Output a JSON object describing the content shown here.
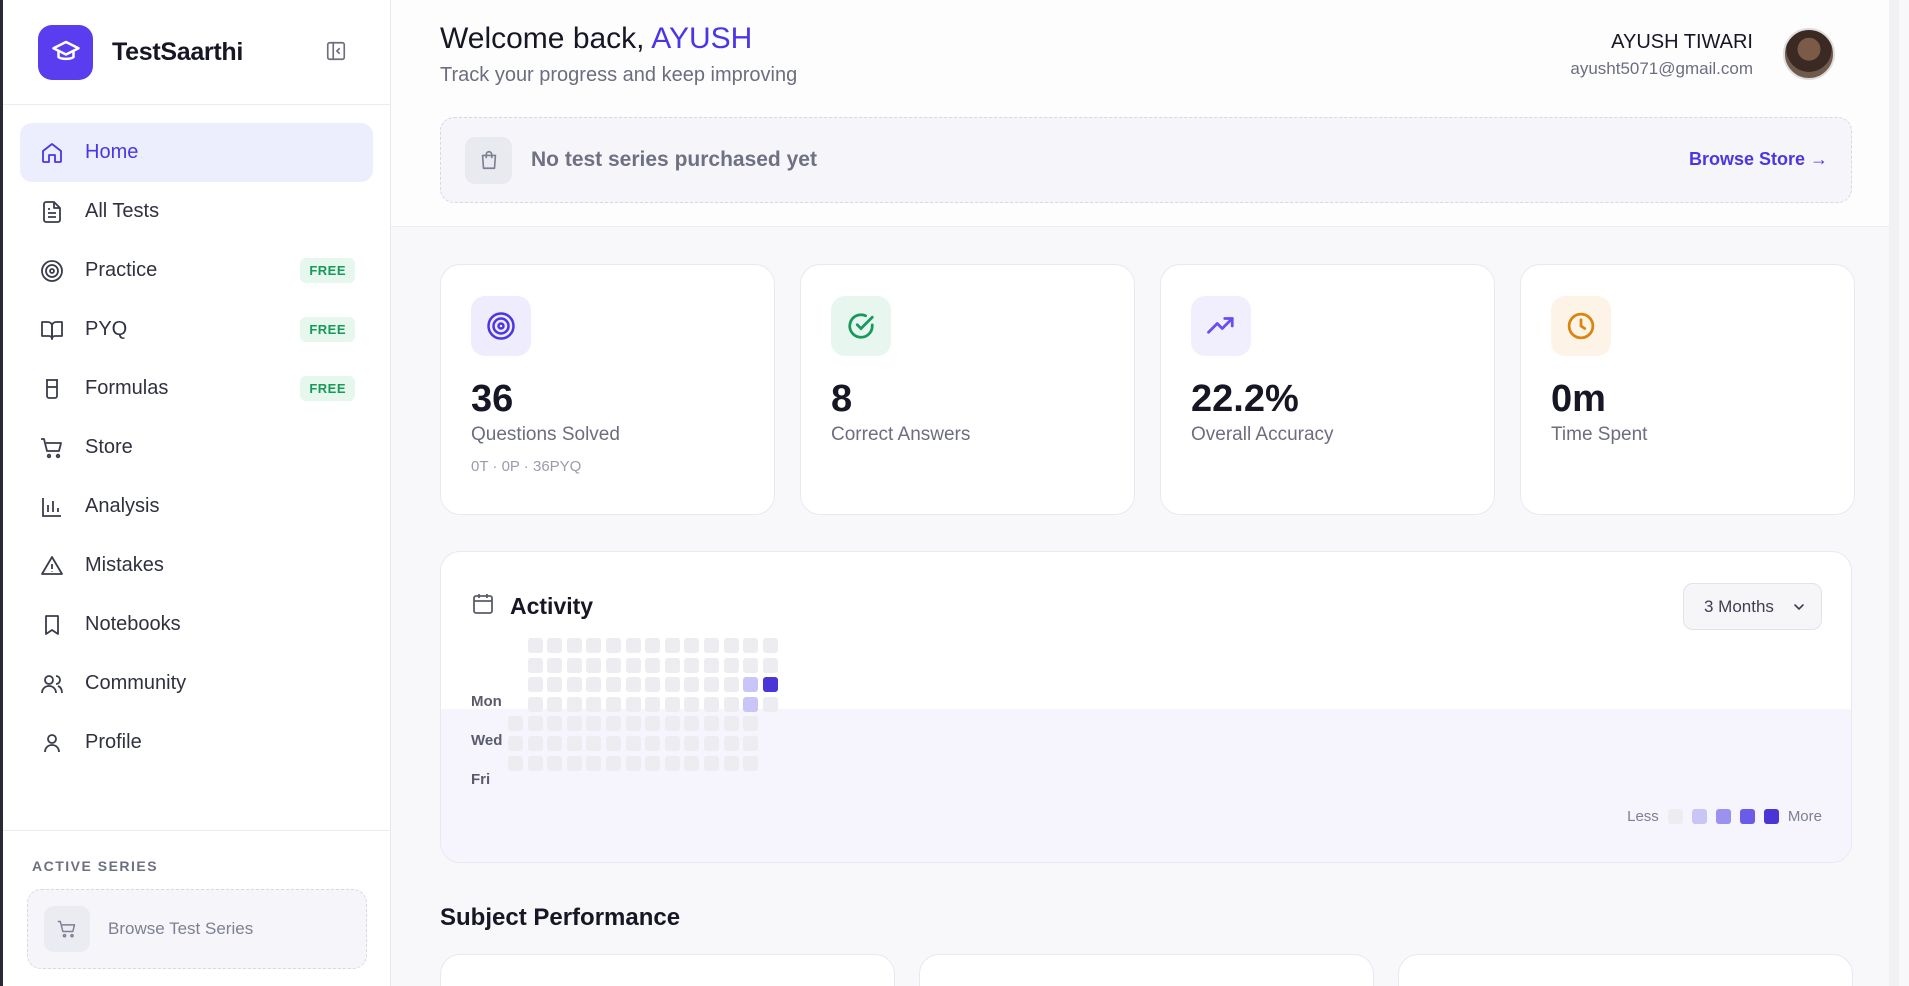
{
  "brand": {
    "name": "TestSaarthi"
  },
  "sidebar": {
    "items": [
      {
        "label": "Home",
        "icon": "home-icon",
        "active": true,
        "badge": ""
      },
      {
        "label": "All Tests",
        "icon": "document-icon",
        "badge": ""
      },
      {
        "label": "Practice",
        "icon": "target-icon",
        "badge": "FREE"
      },
      {
        "label": "PYQ",
        "icon": "book-open-icon",
        "badge": "FREE"
      },
      {
        "label": "Formulas",
        "icon": "beaker-icon",
        "badge": "FREE"
      },
      {
        "label": "Store",
        "icon": "cart-icon",
        "badge": ""
      },
      {
        "label": "Analysis",
        "icon": "bar-chart-icon",
        "badge": ""
      },
      {
        "label": "Mistakes",
        "icon": "warning-icon",
        "badge": ""
      },
      {
        "label": "Notebooks",
        "icon": "bookmark-icon",
        "badge": ""
      },
      {
        "label": "Community",
        "icon": "users-icon",
        "badge": ""
      },
      {
        "label": "Profile",
        "icon": "user-icon",
        "badge": ""
      }
    ],
    "active_series": {
      "title": "ACTIVE SERIES",
      "browse_label": "Browse Test Series"
    }
  },
  "header": {
    "welcome_prefix": "Welcome back, ",
    "welcome_name": "AYUSH",
    "subtitle": "Track your progress and keep improving",
    "user_name": "AYUSH TIWARI",
    "user_email": "ayusht5071@gmail.com"
  },
  "purchase": {
    "message": "No test series purchased yet",
    "link": "Browse Store →"
  },
  "stats": [
    {
      "value": "36",
      "label": "Questions Solved",
      "sub": "0T · 0P · 36PYQ",
      "icon": "target-icon",
      "color": "#4b36e6",
      "bg": "#eeecfd"
    },
    {
      "value": "8",
      "label": "Correct Answers",
      "sub": "",
      "icon": "check-circle-icon",
      "color": "#17995b",
      "bg": "#e7f6ee"
    },
    {
      "value": "22.2%",
      "label": "Overall Accuracy",
      "sub": "",
      "icon": "trending-up-icon",
      "color": "#6a4df2",
      "bg": "#f1effd"
    },
    {
      "value": "0m",
      "label": "Time Spent",
      "sub": "",
      "icon": "clock-icon",
      "color": "#d9850f",
      "bg": "#fdf4e7"
    }
  ],
  "activity": {
    "title": "Activity",
    "range": "3 Months",
    "day_labels": [
      "Mon",
      "Wed",
      "Fri"
    ],
    "legend_less": "Less",
    "legend_more": "More",
    "levels": [
      "#ececf1",
      "#c9c6f7",
      "#9b92f0",
      "#6a5ce8",
      "#4a36d6"
    ],
    "active_days": [
      {
        "week": 12,
        "day": 2,
        "level": 1
      },
      {
        "week": 13,
        "day": 2,
        "level": 4
      },
      {
        "week": 12,
        "day": 3,
        "level": 1
      }
    ]
  },
  "subject_performance": {
    "title": "Subject Performance"
  }
}
